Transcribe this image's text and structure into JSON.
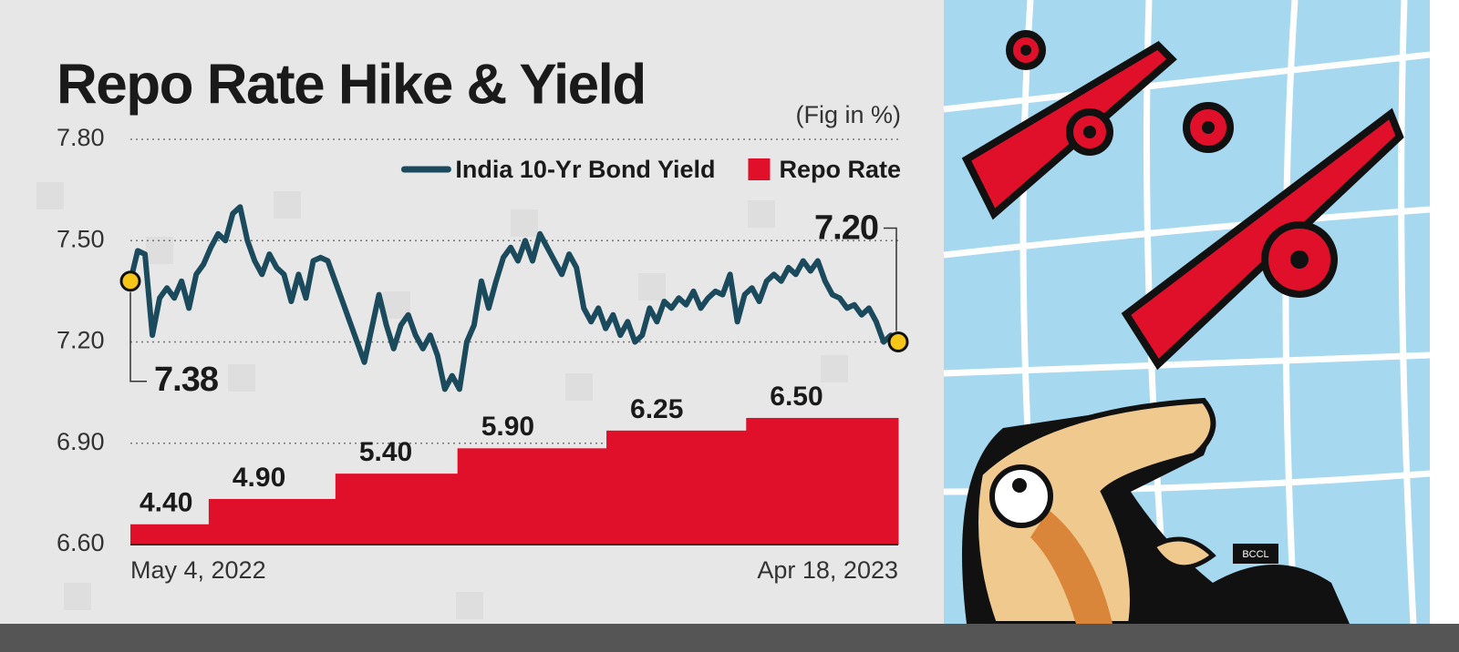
{
  "chart_data": [
    {
      "type": "line",
      "title": "Repo Rate Hike & Yield",
      "subtitle": "(Fig in %)",
      "categories": [
        "May 4, 2022",
        null,
        null,
        null,
        null,
        null,
        null,
        null,
        null,
        null,
        null,
        null,
        null,
        null,
        null,
        null,
        null,
        null,
        null,
        null,
        null,
        null,
        null,
        null,
        null,
        null,
        null,
        null,
        null,
        null,
        null,
        null,
        null,
        null,
        null,
        null,
        null,
        null,
        null,
        null,
        null,
        null,
        null,
        null,
        null,
        null,
        null,
        null,
        null,
        null,
        null,
        null,
        null,
        null,
        null,
        null,
        null,
        null,
        null,
        null,
        null,
        null,
        null,
        null,
        null,
        null,
        null,
        null,
        null,
        null,
        null,
        null,
        null,
        null,
        null,
        null,
        null,
        null,
        null,
        null,
        null,
        null,
        null,
        null,
        null,
        null,
        null,
        null,
        null,
        null,
        null,
        null,
        null,
        null,
        null,
        null,
        null,
        null,
        null,
        null,
        null,
        null,
        null,
        null,
        null,
        "Apr 18, 2023"
      ],
      "series": [
        {
          "name": "India 10-Yr Bond Yield",
          "color": "#1b4a5c",
          "values": [
            7.38,
            7.47,
            7.46,
            7.22,
            7.33,
            7.36,
            7.33,
            7.38,
            7.3,
            7.4,
            7.43,
            7.48,
            7.52,
            7.5,
            7.58,
            7.6,
            7.5,
            7.44,
            7.4,
            7.46,
            7.42,
            7.4,
            7.32,
            7.4,
            7.33,
            7.44,
            7.45,
            7.44,
            7.38,
            7.32,
            7.26,
            7.2,
            7.14,
            7.24,
            7.34,
            7.25,
            7.18,
            7.25,
            7.28,
            7.22,
            7.18,
            7.22,
            7.16,
            7.06,
            7.1,
            7.06,
            7.2,
            7.25,
            7.38,
            7.3,
            7.38,
            7.45,
            7.48,
            7.44,
            7.5,
            7.44,
            7.52,
            7.48,
            7.44,
            7.4,
            7.46,
            7.42,
            7.3,
            7.26,
            7.3,
            7.24,
            7.28,
            7.22,
            7.26,
            7.2,
            7.22,
            7.3,
            7.26,
            7.32,
            7.3,
            7.33,
            7.31,
            7.35,
            7.3,
            7.33,
            7.35,
            7.34,
            7.4,
            7.26,
            7.34,
            7.36,
            7.32,
            7.38,
            7.4,
            7.38,
            7.42,
            7.4,
            7.44,
            7.41,
            7.44,
            7.38,
            7.34,
            7.33,
            7.3,
            7.31,
            7.28,
            7.3,
            7.26,
            7.2,
            7.22,
            7.2
          ],
          "value_labels": [
            "7.38",
            null,
            null,
            null,
            null,
            null,
            null,
            null,
            null,
            null,
            null,
            null,
            null,
            null,
            null,
            null,
            null,
            null,
            null,
            null,
            null,
            null,
            null,
            null,
            null,
            null,
            null,
            null,
            null,
            null,
            null,
            null,
            null,
            null,
            null,
            null,
            null,
            null,
            null,
            null,
            null,
            null,
            null,
            null,
            null,
            null,
            null,
            null,
            null,
            null,
            null,
            null,
            null,
            null,
            null,
            null,
            null,
            null,
            null,
            null,
            null,
            null,
            null,
            null,
            null,
            null,
            null,
            null,
            null,
            null,
            null,
            null,
            null,
            null,
            null,
            null,
            null,
            null,
            null,
            null,
            null,
            null,
            null,
            null,
            null,
            null,
            null,
            null,
            null,
            null,
            null,
            null,
            null,
            null,
            null,
            null,
            null,
            null,
            null,
            null,
            null,
            null,
            null,
            null,
            null,
            "7.20"
          ]
        }
      ],
      "ylim": [
        6.6,
        7.8
      ],
      "yticks": [
        {
          "value": 6.6,
          "label": "6.60"
        },
        {
          "value": 6.9,
          "label": "6.90"
        },
        {
          "value": 7.2,
          "label": "7.20"
        },
        {
          "value": 7.5,
          "label": "7.50"
        },
        {
          "value": 7.8,
          "label": "7.80"
        }
      ],
      "grid": true,
      "legend": "top-right"
    },
    {
      "type": "bar",
      "categories": [
        null,
        null,
        null,
        null,
        null,
        null
      ],
      "series": [
        {
          "name": "Repo Rate",
          "color": "#e0102b",
          "values": [
            4.4,
            4.9,
            5.4,
            5.9,
            6.25,
            6.5
          ],
          "value_labels": [
            "4.40",
            "4.90",
            "5.40",
            "5.90",
            "6.25",
            "6.50"
          ]
        }
      ],
      "ylim": [
        4,
        12
      ]
    }
  ],
  "illustration_credit": "BCCL"
}
